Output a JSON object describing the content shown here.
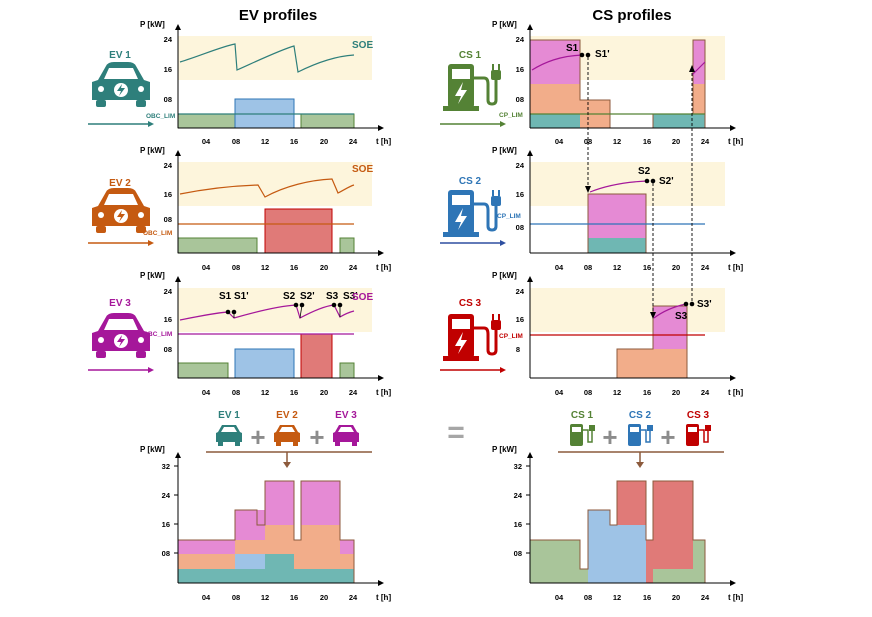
{
  "headers": {
    "ev": "EV profiles",
    "cs": "CS profiles"
  },
  "axis": {
    "y_unit": "P [kW]",
    "x_unit": "t [h]",
    "x_ticks": [
      "04",
      "08",
      "12",
      "16",
      "20",
      "24"
    ]
  },
  "ev_panels": [
    {
      "label": "EV 1",
      "color": "#2e7f7b",
      "soe_label": "SOE",
      "limit_label": "OBC_LIM",
      "y_ticks": [
        "24",
        "16",
        "08"
      ]
    },
    {
      "label": "EV 2",
      "color": "#c55a11",
      "soe_label": "SOE",
      "limit_label": "OBC_LIM",
      "y_ticks": [
        "24",
        "16",
        "08"
      ]
    },
    {
      "label": "EV 3",
      "color": "#a5179a",
      "soe_label": "SOE",
      "limit_label": "OBC_LIM",
      "y_ticks": [
        "24",
        "16",
        "08"
      ],
      "points": [
        "S1",
        "S1'",
        "S2",
        "S2'",
        "S3",
        "S3'"
      ]
    }
  ],
  "cs_panels": [
    {
      "label": "CS 1",
      "color": "#548235",
      "limit_label": "CP_LIM",
      "y_ticks": [
        "24",
        "16",
        "08"
      ],
      "points": [
        "S1",
        "S1'"
      ]
    },
    {
      "label": "CS 2",
      "color": "#2e75b6",
      "limit_label": "CP_LIM",
      "y_ticks": [
        "24",
        "16",
        "08"
      ],
      "points": [
        "S2",
        "S2'"
      ]
    },
    {
      "label": "CS 3",
      "color": "#c00000",
      "limit_label": "CP_LIM",
      "y_ticks": [
        "24",
        "16",
        "8"
      ],
      "points": [
        "S3",
        "S3'"
      ]
    }
  ],
  "sum_left": {
    "labels": [
      "EV 1",
      "EV 2",
      "EV 3"
    ],
    "y_ticks": [
      "32",
      "24",
      "16",
      "08"
    ]
  },
  "sum_right": {
    "labels": [
      "CS 1",
      "CS 2",
      "CS 3"
    ],
    "y_ticks": [
      "32",
      "24",
      "16",
      "08"
    ]
  },
  "symbols": {
    "equals": "=",
    "plus": "+"
  },
  "colors": {
    "teal": "#2e7f7b",
    "orange": "#c55a11",
    "magenta": "#a5179a",
    "green": "#548235",
    "blue": "#2e75b6",
    "red": "#c00000",
    "band": "#fdf5dc",
    "fill_green": "#a9c59a",
    "fill_blue": "#9ec3e6",
    "fill_red": "#e07a78",
    "fill_pink": "#e58ad4",
    "fill_peach": "#f2ad8a",
    "fill_teal": "#6fb7b3"
  },
  "icons": [
    "car-icon",
    "charging-station-icon",
    "plus-icon",
    "equals-icon",
    "arrow-right-icon"
  ]
}
